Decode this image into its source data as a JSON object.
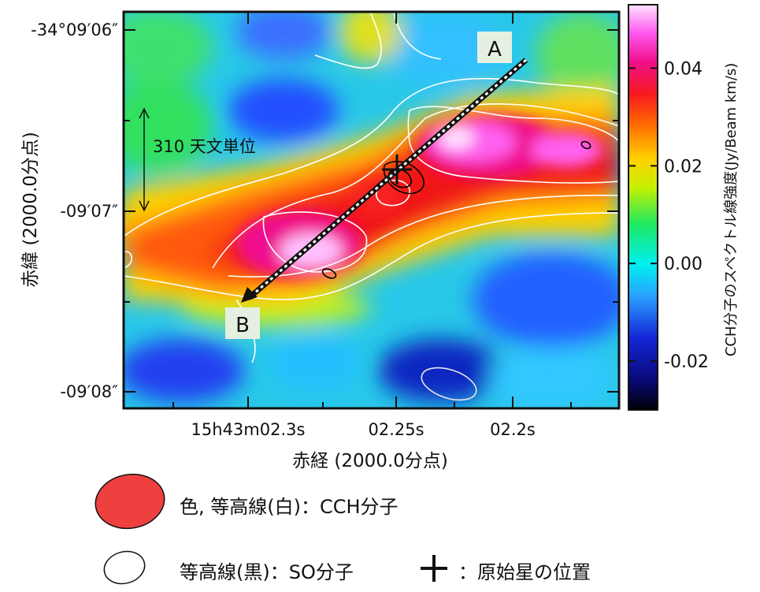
{
  "chart_data": {
    "type": "heatmap",
    "colorbar": {
      "label": "CCH分子のスペクトル線強度(Jy/Beam km/s)",
      "range": [
        -0.03,
        0.053
      ],
      "ticks": [
        {
          "value": 0.04,
          "label": "0.04"
        },
        {
          "value": 0.02,
          "label": "0.02"
        },
        {
          "value": 0.0,
          "label": "0.00"
        },
        {
          "value": -0.02,
          "label": "-0.02"
        }
      ]
    },
    "x_axis": {
      "label": "赤経 (2000.0分点)",
      "ticks": [
        {
          "label": "15h43m02.3s"
        },
        {
          "label": "02.25s"
        },
        {
          "label": "02.2s"
        }
      ]
    },
    "y_axis": {
      "label": "赤緯 (2000.0分点)",
      "ticks": [
        {
          "label": "-34°09′06″"
        },
        {
          "label": "-09′07″"
        },
        {
          "label": "-09′08″"
        }
      ]
    },
    "annotations": {
      "scale_bar": "310 天文単位",
      "cut_start": "A",
      "cut_end": "B"
    }
  },
  "legend": {
    "cch": "色, 等高線(白)：CCH分子",
    "so": "等高線(黒)：SO分子",
    "protostar": "：原始星の位置"
  },
  "colors": {
    "cch_marker": "#ef4040",
    "white_contour": "#ffffff",
    "black_contour": "#000000"
  }
}
